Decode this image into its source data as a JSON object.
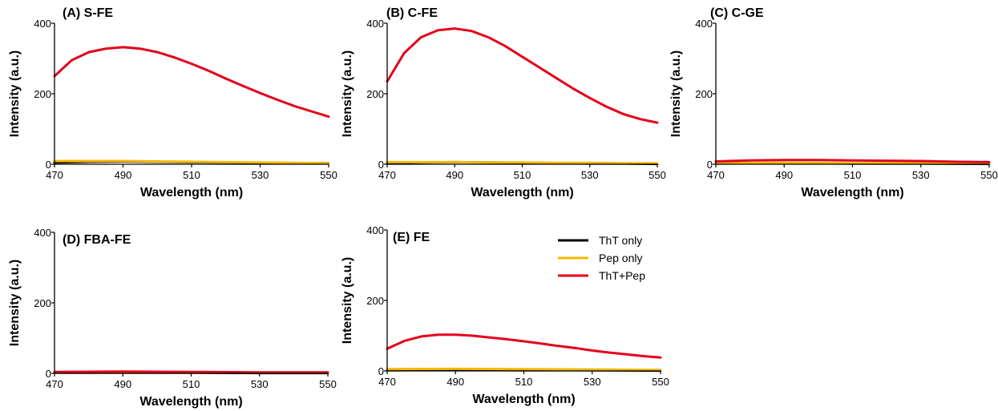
{
  "chart_data": [
    {
      "type": "line",
      "title": "(A) S-FE",
      "xlabel": "Wavelength (nm)",
      "ylabel": "Intensity (a.u.)",
      "xlim": [
        470,
        550
      ],
      "ylim": [
        0,
        400
      ],
      "xticks": [
        "470",
        "490",
        "510",
        "530",
        "550"
      ],
      "yticks": [
        "0",
        "200",
        "400"
      ],
      "series": [
        {
          "name": "ThT only",
          "color": "#000000",
          "x": [
            470,
            480,
            490,
            500,
            510,
            520,
            530,
            540,
            550
          ],
          "values": [
            5,
            7,
            8,
            7,
            6,
            5,
            4,
            3,
            3
          ]
        },
        {
          "name": "Pep only",
          "color": "#f5b800",
          "x": [
            470,
            480,
            490,
            500,
            510,
            520,
            530,
            540,
            550
          ],
          "values": [
            9,
            9,
            9,
            8,
            7,
            6,
            5,
            4,
            3
          ]
        },
        {
          "name": "ThT+Pep",
          "color": "#e3001b",
          "x": [
            470,
            475,
            480,
            485,
            490,
            495,
            500,
            505,
            510,
            515,
            520,
            525,
            530,
            535,
            540,
            545,
            550
          ],
          "values": [
            250,
            295,
            318,
            328,
            332,
            328,
            318,
            303,
            285,
            265,
            243,
            222,
            202,
            183,
            165,
            150,
            135
          ]
        }
      ]
    },
    {
      "type": "line",
      "title": "(B) C-FE",
      "xlabel": "Wavelength (nm)",
      "ylabel": "Intensity (a.u.)",
      "xlim": [
        470,
        550
      ],
      "ylim": [
        0,
        400
      ],
      "xticks": [
        "470",
        "490",
        "510",
        "530",
        "550"
      ],
      "yticks": [
        "0",
        "200",
        "400"
      ],
      "series": [
        {
          "name": "ThT only",
          "color": "#000000",
          "x": [
            470,
            480,
            490,
            500,
            510,
            520,
            530,
            540,
            550
          ],
          "values": [
            3,
            5,
            6,
            5,
            4,
            3,
            2,
            2,
            1
          ]
        },
        {
          "name": "Pep only",
          "color": "#f5b800",
          "x": [
            470,
            480,
            490,
            500,
            510,
            520,
            530,
            540,
            550
          ],
          "values": [
            6,
            6,
            6,
            5,
            5,
            4,
            4,
            3,
            3
          ]
        },
        {
          "name": "ThT+Pep",
          "color": "#e3001b",
          "x": [
            470,
            475,
            480,
            485,
            490,
            495,
            500,
            505,
            510,
            515,
            520,
            525,
            530,
            535,
            540,
            545,
            550
          ],
          "values": [
            235,
            315,
            360,
            380,
            385,
            378,
            360,
            335,
            305,
            275,
            245,
            215,
            188,
            163,
            142,
            128,
            118
          ]
        }
      ]
    },
    {
      "type": "line",
      "title": "(C) C-GE",
      "xlabel": "Wavelength (nm)",
      "ylabel": "Intensity (a.u.)",
      "xlim": [
        470,
        550
      ],
      "ylim": [
        0,
        400
      ],
      "xticks": [
        "470",
        "490",
        "510",
        "530",
        "550"
      ],
      "yticks": [
        "0",
        "200",
        "400"
      ],
      "series": [
        {
          "name": "ThT only",
          "color": "#000000",
          "x": [
            470,
            490,
            510,
            530,
            550
          ],
          "values": [
            2,
            3,
            2,
            2,
            1
          ]
        },
        {
          "name": "Pep only",
          "color": "#f5b800",
          "x": [
            470,
            490,
            510,
            530,
            550
          ],
          "values": [
            3,
            4,
            3,
            3,
            2
          ]
        },
        {
          "name": "ThT+Pep",
          "color": "#e3001b",
          "x": [
            470,
            480,
            490,
            500,
            510,
            520,
            530,
            540,
            550
          ],
          "values": [
            8,
            11,
            12,
            12,
            11,
            10,
            9,
            7,
            6
          ]
        }
      ]
    },
    {
      "type": "line",
      "title": "(D) FBA-FE",
      "xlabel": "Wavelength (nm)",
      "ylabel": "Intensity (a.u.)",
      "xlim": [
        470,
        550
      ],
      "ylim": [
        0,
        400
      ],
      "xticks": [
        "470",
        "490",
        "510",
        "530",
        "550"
      ],
      "yticks": [
        "0",
        "200",
        "400"
      ],
      "series": [
        {
          "name": "ThT only",
          "color": "#000000",
          "x": [
            470,
            490,
            510,
            530,
            550
          ],
          "values": [
            2,
            2,
            2,
            1,
            1
          ]
        },
        {
          "name": "Pep only",
          "color": "#f5b800",
          "x": [
            470,
            490,
            510,
            530,
            550
          ],
          "values": [
            3,
            3,
            3,
            2,
            2
          ]
        },
        {
          "name": "ThT+Pep",
          "color": "#e3001b",
          "x": [
            470,
            490,
            510,
            530,
            550
          ],
          "values": [
            4,
            5,
            4,
            3,
            3
          ]
        }
      ]
    },
    {
      "type": "line",
      "title": "(E) FE",
      "xlabel": "Wavelength (nm)",
      "ylabel": "Intensity (a.u.)",
      "xlim": [
        470,
        550
      ],
      "ylim": [
        0,
        400
      ],
      "xticks": [
        "470",
        "490",
        "510",
        "530",
        "550"
      ],
      "yticks": [
        "0",
        "200",
        "400"
      ],
      "series": [
        {
          "name": "ThT only",
          "color": "#000000",
          "x": [
            470,
            490,
            510,
            530,
            550
          ],
          "values": [
            2,
            3,
            2,
            2,
            1
          ]
        },
        {
          "name": "Pep only",
          "color": "#f5b800",
          "x": [
            470,
            490,
            510,
            530,
            550
          ],
          "values": [
            5,
            6,
            5,
            4,
            3
          ]
        },
        {
          "name": "ThT+Pep",
          "color": "#e3001b",
          "x": [
            470,
            475,
            480,
            485,
            490,
            495,
            500,
            505,
            510,
            515,
            520,
            525,
            530,
            535,
            540,
            545,
            550
          ],
          "values": [
            63,
            85,
            98,
            103,
            103,
            100,
            95,
            90,
            84,
            78,
            71,
            65,
            58,
            52,
            47,
            42,
            38
          ]
        }
      ]
    }
  ],
  "legend": {
    "placement": "right-of-panel-E",
    "entries": [
      {
        "label": "ThT only",
        "color": "#000000"
      },
      {
        "label": "Pep only",
        "color": "#f5b800"
      },
      {
        "label": "ThT+Pep",
        "color": "#e3001b"
      }
    ]
  }
}
